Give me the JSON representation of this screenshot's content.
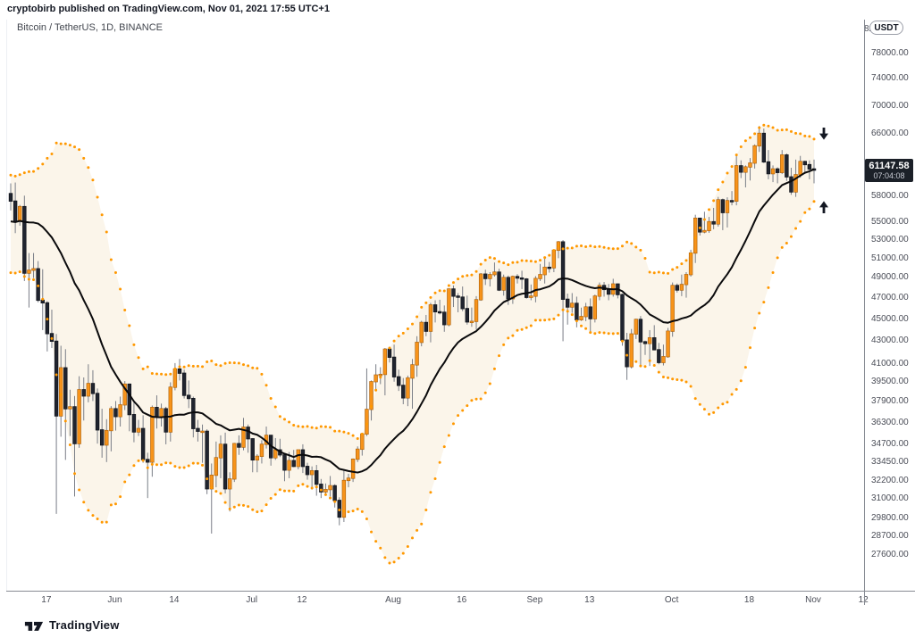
{
  "page": {
    "publish_line": "cryptobirb published on TradingView.com, Nov 01, 2021 17:55 UTC+1",
    "watermark": "TradingView"
  },
  "chart": {
    "title": "Bitcoin / TetherUS, 1D, BINANCE",
    "currency_pill": "USDT",
    "price_badge": {
      "price": "61147.58",
      "countdown": "07:04:08"
    },
    "colors": {
      "band_fill": "#FBF5EA",
      "dot": "#FF9800",
      "up_body": "#F7931A",
      "up_border": "#A85E08",
      "down_body": "#20242F",
      "down_border": "#0B0E15",
      "wick": "#7A7E87",
      "basis_line": "#0A0A0C",
      "axis_line": "#878B93",
      "axis_text": "#4A4D57",
      "badge_bg": "#1B2028",
      "marker": "#131722"
    }
  },
  "chart_data": {
    "type": "candlestick",
    "title": "Bitcoin / TetherUS, 1D, BINANCE",
    "symbol": "Bitcoin / TetherUS",
    "interval": "1D",
    "exchange": "BINANCE",
    "price_scale": "logarithmic",
    "visible_price_range": [
      26500,
      80000
    ],
    "first_candle_date": "2021-05-09",
    "last_candle_date": "2021-11-01",
    "last_price": 61147.58,
    "bar_countdown": "07:04:08",
    "indicator": {
      "name": "Bollinger Bands",
      "length": 20,
      "stdev_mult": 2,
      "basis_style": "solid-black-line",
      "band_style": "orange-circles",
      "fill_style": "cream"
    },
    "warmup_closes": [
      56500,
      53800,
      51700,
      51100,
      50100,
      49000,
      54000,
      55000,
      54850,
      53550,
      57750,
      57850,
      56600,
      57200,
      53200,
      57500,
      56400,
      57350,
      58850
    ],
    "candles": [
      [
        58250,
        59500,
        56250,
        57350
      ],
      [
        57350,
        59600,
        53666,
        55000
      ],
      [
        55000,
        56900,
        54500,
        56700
      ],
      [
        56700,
        58000,
        48600,
        49400
      ],
      [
        49400,
        51500,
        46000,
        49700
      ],
      [
        49700,
        51500,
        48900,
        49850
      ],
      [
        49850,
        50650,
        46500,
        46700
      ],
      [
        46700,
        49800,
        43900,
        46450
      ],
      [
        46450,
        46600,
        42000,
        43580
      ],
      [
        43580,
        45800,
        42300,
        42900
      ],
      [
        42900,
        43550,
        30000,
        36750
      ],
      [
        36750,
        42500,
        35200,
        40600
      ],
      [
        40600,
        42200,
        33550,
        37300
      ],
      [
        37300,
        38800,
        35250,
        37450
      ],
      [
        37450,
        38300,
        31100,
        34700
      ],
      [
        34700,
        39900,
        34400,
        38800
      ],
      [
        38800,
        39800,
        36400,
        38300
      ],
      [
        38300,
        40900,
        37800,
        39300
      ],
      [
        39300,
        40400,
        37900,
        38500
      ],
      [
        38500,
        38900,
        34700,
        35700
      ],
      [
        35700,
        37300,
        33700,
        34600
      ],
      [
        34600,
        36500,
        33400,
        35650
      ],
      [
        35650,
        37500,
        34150,
        37300
      ],
      [
        37300,
        37900,
        35650,
        36700
      ],
      [
        36700,
        38250,
        35950,
        37600
      ],
      [
        37600,
        39500,
        37200,
        39250
      ],
      [
        39250,
        39300,
        35600,
        36850
      ],
      [
        36850,
        37900,
        34800,
        35550
      ],
      [
        35550,
        36450,
        35250,
        35800
      ],
      [
        35800,
        36800,
        33350,
        33575
      ],
      [
        33575,
        34050,
        31000,
        33400
      ],
      [
        33400,
        37550,
        32400,
        37400
      ],
      [
        37400,
        38350,
        35800,
        36700
      ],
      [
        36700,
        37700,
        35950,
        37300
      ],
      [
        37300,
        37450,
        34650,
        35550
      ],
      [
        35550,
        39400,
        34850,
        39000
      ],
      [
        39000,
        41000,
        38750,
        40500
      ],
      [
        40500,
        41350,
        39550,
        40150
      ],
      [
        40150,
        40450,
        38100,
        38350
      ],
      [
        38350,
        39550,
        37350,
        38100
      ],
      [
        38100,
        38250,
        35150,
        35800
      ],
      [
        35800,
        36450,
        34850,
        35600
      ],
      [
        35600,
        36100,
        33350,
        35600
      ],
      [
        35600,
        35750,
        31250,
        31600
      ],
      [
        31600,
        33300,
        28800,
        32500
      ],
      [
        32500,
        34850,
        31700,
        33700
      ],
      [
        33700,
        35300,
        32300,
        34650
      ],
      [
        34650,
        35500,
        31300,
        31600
      ],
      [
        31600,
        32700,
        30150,
        32250
      ],
      [
        32250,
        34750,
        32050,
        34700
      ],
      [
        34700,
        35300,
        33900,
        34450
      ],
      [
        34450,
        36600,
        34225,
        35900
      ],
      [
        35900,
        36100,
        34050,
        35050
      ],
      [
        35050,
        35100,
        32700,
        33550
      ],
      [
        33550,
        33950,
        32700,
        33800
      ],
      [
        33800,
        34950,
        33300,
        34650
      ],
      [
        34650,
        35950,
        34350,
        35300
      ],
      [
        35300,
        35300,
        33150,
        33700
      ],
      [
        33700,
        35100,
        33550,
        34250
      ],
      [
        34250,
        35050,
        33750,
        33900
      ],
      [
        33900,
        33900,
        32100,
        32850
      ],
      [
        32850,
        34100,
        32300,
        33500
      ],
      [
        33500,
        34250,
        33050,
        33100
      ],
      [
        33100,
        34250,
        32900,
        34250
      ],
      [
        34250,
        34650,
        32650,
        33100
      ],
      [
        33100,
        33350,
        32200,
        32550
      ],
      [
        32550,
        33100,
        31550,
        32800
      ],
      [
        32800,
        33200,
        31150,
        31900
      ],
      [
        31900,
        32250,
        31000,
        31400
      ],
      [
        31400,
        31950,
        31150,
        31550
      ],
      [
        31550,
        32450,
        31100,
        31800
      ],
      [
        31800,
        31900,
        30400,
        30850
      ],
      [
        30850,
        31050,
        29300,
        29800
      ],
      [
        29800,
        32850,
        29500,
        32150
      ],
      [
        32150,
        32600,
        31700,
        32300
      ],
      [
        32300,
        33650,
        32050,
        33600
      ],
      [
        33600,
        34500,
        33400,
        34300
      ],
      [
        34300,
        35400,
        33850,
        35400
      ],
      [
        35400,
        40550,
        35250,
        37250
      ],
      [
        37250,
        39550,
        36400,
        39450
      ],
      [
        39450,
        40900,
        38800,
        40000
      ],
      [
        40000,
        40650,
        39250,
        40050
      ],
      [
        40050,
        42300,
        38350,
        42200
      ],
      [
        42200,
        42400,
        41050,
        41500
      ],
      [
        41500,
        42600,
        39450,
        39850
      ],
      [
        39850,
        40450,
        38700,
        39150
      ],
      [
        39150,
        39750,
        37650,
        38150
      ],
      [
        38150,
        39950,
        37500,
        39750
      ],
      [
        39750,
        41350,
        37300,
        40850
      ],
      [
        40850,
        43350,
        39850,
        42800
      ],
      [
        42800,
        44750,
        42450,
        44600
      ],
      [
        44600,
        45300,
        43350,
        43800
      ],
      [
        43800,
        46450,
        42800,
        46250
      ],
      [
        46250,
        46700,
        44600,
        45600
      ],
      [
        45600,
        46750,
        45350,
        45550
      ],
      [
        45550,
        46200,
        43750,
        44400
      ],
      [
        44400,
        47850,
        44250,
        47800
      ],
      [
        47800,
        48150,
        46050,
        47100
      ],
      [
        47100,
        47400,
        45550,
        47000
      ],
      [
        47000,
        48050,
        45650,
        45900
      ],
      [
        45900,
        47150,
        44400,
        44650
      ],
      [
        44650,
        46000,
        44200,
        44700
      ],
      [
        44700,
        47100,
        43950,
        46750
      ],
      [
        46750,
        49400,
        46650,
        49300
      ],
      [
        49300,
        49750,
        48200,
        48850
      ],
      [
        48850,
        49500,
        48050,
        49250
      ],
      [
        49250,
        50500,
        49050,
        49500
      ],
      [
        49500,
        49850,
        47600,
        47700
      ],
      [
        47700,
        49250,
        47150,
        48950
      ],
      [
        48950,
        49150,
        46250,
        46850
      ],
      [
        46850,
        49150,
        46350,
        49050
      ],
      [
        49050,
        49300,
        48350,
        48900
      ],
      [
        48900,
        49650,
        47800,
        48800
      ],
      [
        48800,
        48900,
        46850,
        46980
      ],
      [
        46980,
        48250,
        46700,
        47100
      ],
      [
        47100,
        49100,
        46500,
        48850
      ],
      [
        48850,
        50350,
        48600,
        49250
      ],
      [
        49250,
        51000,
        48350,
        50000
      ],
      [
        50000,
        50550,
        49450,
        49950
      ],
      [
        49950,
        51900,
        49500,
        51800
      ],
      [
        51800,
        52800,
        50950,
        52700
      ],
      [
        52700,
        52900,
        42900,
        46800
      ],
      [
        46800,
        47350,
        44400,
        46050
      ],
      [
        46050,
        47400,
        45500,
        46400
      ],
      [
        46400,
        47050,
        44150,
        44850
      ],
      [
        44850,
        45990,
        44750,
        45150
      ],
      [
        45150,
        46450,
        44720,
        46050
      ],
      [
        46050,
        46880,
        43750,
        44950
      ],
      [
        44950,
        47250,
        44600,
        47100
      ],
      [
        47100,
        48450,
        46700,
        48150
      ],
      [
        48150,
        48500,
        47050,
        47750
      ],
      [
        47750,
        48300,
        46700,
        47300
      ],
      [
        47300,
        48825,
        47050,
        48300
      ],
      [
        48300,
        48350,
        46880,
        47250
      ],
      [
        47250,
        47350,
        42500,
        43000
      ],
      [
        43000,
        43650,
        39600,
        40700
      ],
      [
        40700,
        44000,
        40550,
        43550
      ],
      [
        43550,
        44950,
        43100,
        44880
      ],
      [
        44880,
        45200,
        40700,
        42850
      ],
      [
        42850,
        42950,
        41700,
        42700
      ],
      [
        42700,
        43900,
        40750,
        43200
      ],
      [
        43200,
        44350,
        42100,
        42150
      ],
      [
        42150,
        42750,
        40900,
        41050
      ],
      [
        41050,
        42600,
        40800,
        41550
      ],
      [
        41550,
        44100,
        41450,
        43800
      ],
      [
        43800,
        48450,
        43300,
        48150
      ],
      [
        48150,
        48350,
        47450,
        47700
      ],
      [
        47700,
        49250,
        47100,
        48250
      ],
      [
        48250,
        49500,
        46950,
        49250
      ],
      [
        49250,
        51850,
        49050,
        51500
      ],
      [
        51500,
        55750,
        50450,
        55350
      ],
      [
        55350,
        55350,
        53400,
        53800
      ],
      [
        53800,
        56100,
        53650,
        53950
      ],
      [
        53950,
        55500,
        53700,
        54950
      ],
      [
        54950,
        56550,
        54100,
        54700
      ],
      [
        54700,
        57850,
        54400,
        57500
      ],
      [
        57500,
        57650,
        54000,
        56000
      ],
      [
        56000,
        57800,
        54300,
        57400
      ],
      [
        57400,
        58550,
        56850,
        57350
      ],
      [
        57350,
        62950,
        56850,
        61700
      ],
      [
        61700,
        62400,
        60150,
        60900
      ],
      [
        60900,
        61750,
        59000,
        61550
      ],
      [
        61550,
        62700,
        59850,
        62050
      ],
      [
        62050,
        64500,
        61350,
        64300
      ],
      [
        64300,
        67000,
        63500,
        65990
      ],
      [
        65990,
        66650,
        62050,
        62200
      ],
      [
        62200,
        63750,
        60000,
        60700
      ],
      [
        60700,
        61750,
        59650,
        61300
      ],
      [
        61300,
        61500,
        59500,
        60850
      ],
      [
        60850,
        63750,
        60650,
        63100
      ],
      [
        63100,
        63300,
        59800,
        60300
      ],
      [
        60300,
        61450,
        58100,
        58450
      ],
      [
        58450,
        62500,
        57850,
        60575
      ],
      [
        60575,
        62980,
        60200,
        62250
      ],
      [
        62250,
        62350,
        60700,
        61850
      ],
      [
        61850,
        62400,
        60000,
        61300
      ],
      [
        61300,
        62500,
        59500,
        61147.58
      ]
    ],
    "markers": [
      {
        "shape": "arrow-down",
        "price": 65900,
        "bars_after_last": 2.2
      },
      {
        "shape": "arrow-up",
        "price": 56700,
        "bars_after_last": 2.2
      }
    ],
    "price_ticks": [
      "82000.00",
      "78000.00",
      "74000.00",
      "70000.00",
      "66000.00",
      "62000.00",
      "58000.00",
      "55000.00",
      "53000.00",
      "51000.00",
      "49000.00",
      "47000.00",
      "45000.00",
      "43000.00",
      "41000.00",
      "39500.00",
      "37900.00",
      "36300.00",
      "34700.00",
      "33450.00",
      "32200.00",
      "31000.00",
      "29800.00",
      "28700.00",
      "27600.00"
    ],
    "time_ticks": [
      {
        "label": "17",
        "day": 8
      },
      {
        "label": "Jun",
        "day": 23
      },
      {
        "label": "14",
        "day": 36
      },
      {
        "label": "Jul",
        "day": 53
      },
      {
        "label": "12",
        "day": 64
      },
      {
        "label": "Aug",
        "day": 84
      },
      {
        "label": "16",
        "day": 99
      },
      {
        "label": "Sep",
        "day": 115
      },
      {
        "label": "13",
        "day": 127
      },
      {
        "label": "Oct",
        "day": 145
      },
      {
        "label": "18",
        "day": 162
      },
      {
        "label": "Nov",
        "day": 176
      },
      {
        "label": "12",
        "day": 187
      }
    ]
  }
}
